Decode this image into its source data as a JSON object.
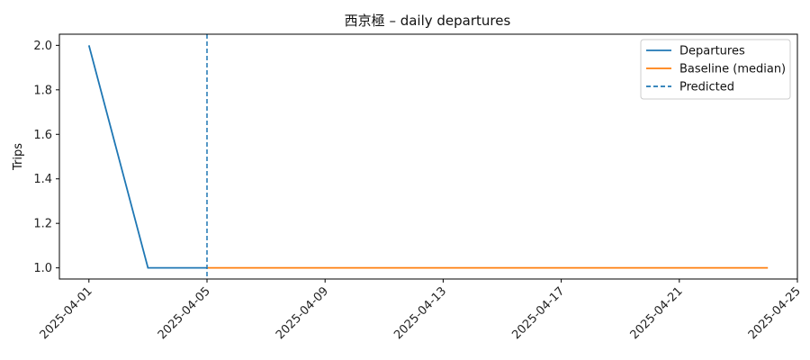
{
  "chart_data": {
    "type": "line",
    "title": "西京極 – daily departures",
    "xlabel": "",
    "ylabel": "Trips",
    "xlim": [
      "2025-03-31",
      "2025-04-25"
    ],
    "ylim": [
      0.95,
      2.05
    ],
    "x_ticks": [
      "2025-04-01",
      "2025-04-05",
      "2025-04-09",
      "2025-04-13",
      "2025-04-17",
      "2025-04-21",
      "2025-04-25"
    ],
    "y_ticks": [
      "1.0",
      "1.2",
      "1.4",
      "1.6",
      "1.8",
      "2.0"
    ],
    "grid": false,
    "legend_position": "top-right",
    "series": [
      {
        "name": "Departures",
        "color": "#1f77b4",
        "style": "solid",
        "x": [
          "2025-04-01",
          "2025-04-03",
          "2025-04-05"
        ],
        "y": [
          2,
          1,
          1
        ]
      },
      {
        "name": "Baseline (median)",
        "color": "#ff7f0e",
        "style": "solid",
        "x": [
          "2025-04-05",
          "2025-04-24"
        ],
        "y": [
          1,
          1
        ]
      }
    ],
    "vertical_lines": [
      {
        "name": "Predicted",
        "color": "#1f77b4",
        "style": "dashed",
        "x": "2025-04-05"
      }
    ]
  }
}
